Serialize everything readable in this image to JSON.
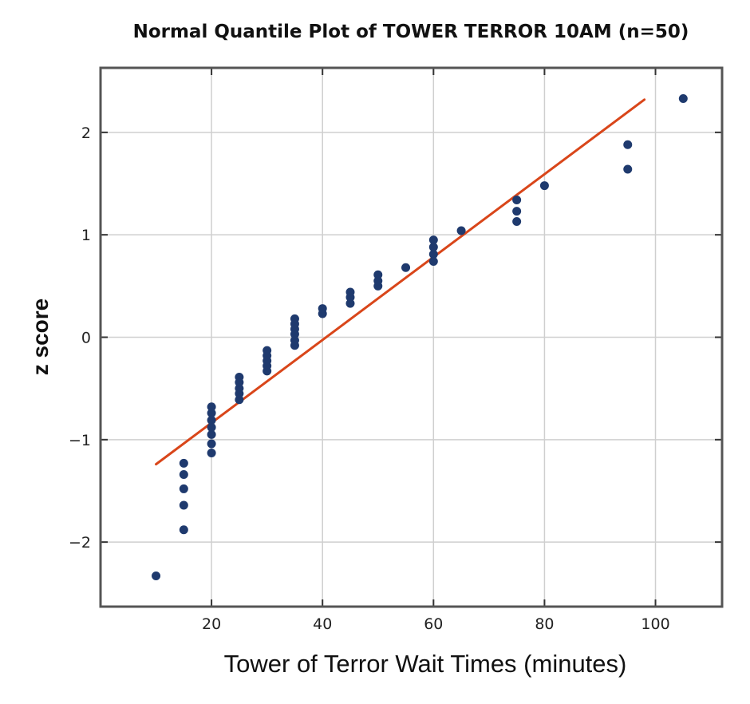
{
  "chart_data": {
    "type": "scatter",
    "title": "Normal Quantile Plot of TOWER TERROR 10AM (n=50)",
    "xlabel": "Tower of Terror Wait Times (minutes)",
    "ylabel": "z score",
    "xlim": [
      0,
      112
    ],
    "ylim": [
      -2.63,
      2.63
    ],
    "xticks": [
      20,
      40,
      60,
      80,
      100
    ],
    "yticks": [
      -2,
      -1,
      0,
      1,
      2
    ],
    "xtick_labels": [
      "20",
      "40",
      "60",
      "80",
      "100"
    ],
    "ytick_labels": [
      "−2",
      "−1",
      "0",
      "1",
      "2"
    ],
    "grid": true,
    "point_color": "#1f3a6e",
    "line_color": "#d9461a",
    "points": [
      [
        10,
        -2.33
      ],
      [
        15,
        -1.88
      ],
      [
        15,
        -1.64
      ],
      [
        15,
        -1.48
      ],
      [
        15,
        -1.34
      ],
      [
        15,
        -1.23
      ],
      [
        20,
        -1.13
      ],
      [
        20,
        -1.04
      ],
      [
        20,
        -0.95
      ],
      [
        20,
        -0.88
      ],
      [
        20,
        -0.81
      ],
      [
        20,
        -0.74
      ],
      [
        20,
        -0.68
      ],
      [
        25,
        -0.61
      ],
      [
        25,
        -0.55
      ],
      [
        25,
        -0.5
      ],
      [
        25,
        -0.44
      ],
      [
        25,
        -0.39
      ],
      [
        30,
        -0.33
      ],
      [
        30,
        -0.28
      ],
      [
        30,
        -0.23
      ],
      [
        30,
        -0.18
      ],
      [
        30,
        -0.13
      ],
      [
        35,
        -0.08
      ],
      [
        35,
        -0.03
      ],
      [
        35,
        0.03
      ],
      [
        35,
        0.08
      ],
      [
        35,
        0.13
      ],
      [
        35,
        0.18
      ],
      [
        40,
        0.23
      ],
      [
        40,
        0.28
      ],
      [
        45,
        0.33
      ],
      [
        45,
        0.39
      ],
      [
        45,
        0.44
      ],
      [
        50,
        0.5
      ],
      [
        50,
        0.55
      ],
      [
        50,
        0.61
      ],
      [
        55,
        0.68
      ],
      [
        60,
        0.74
      ],
      [
        60,
        0.81
      ],
      [
        60,
        0.88
      ],
      [
        60,
        0.95
      ],
      [
        65,
        1.04
      ],
      [
        75,
        1.13
      ],
      [
        75,
        1.23
      ],
      [
        75,
        1.34
      ],
      [
        80,
        1.48
      ],
      [
        95,
        1.64
      ],
      [
        95,
        1.88
      ],
      [
        105,
        2.33
      ]
    ],
    "fit_line": {
      "x": [
        10,
        98
      ],
      "y": [
        -1.24,
        2.32
      ]
    }
  }
}
